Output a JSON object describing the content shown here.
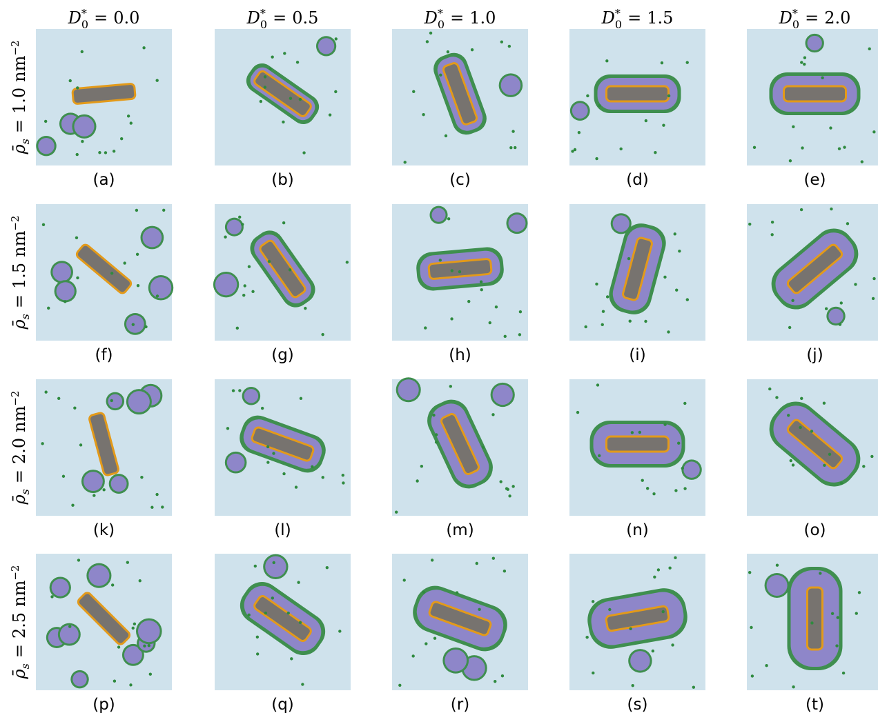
{
  "columns": [
    {
      "symbol": "D",
      "sub": "0",
      "sup": "*",
      "relation": "=",
      "value": "0.0"
    },
    {
      "symbol": "D",
      "sub": "0",
      "sup": "*",
      "relation": "=",
      "value": "0.5"
    },
    {
      "symbol": "D",
      "sub": "0",
      "sup": "*",
      "relation": "=",
      "value": "1.0"
    },
    {
      "symbol": "D",
      "sub": "0",
      "sup": "*",
      "relation": "=",
      "value": "1.5"
    },
    {
      "symbol": "D",
      "sub": "0",
      "sup": "*",
      "relation": "=",
      "value": "2.0"
    }
  ],
  "rows": [
    {
      "symbol": "ρ̄",
      "sub": "s",
      "relation": "=",
      "value": "1.0",
      "unit": "nm",
      "unit_exp": "−2"
    },
    {
      "symbol": "ρ̄",
      "sub": "s",
      "relation": "=",
      "value": "1.5",
      "unit": "nm",
      "unit_exp": "−2"
    },
    {
      "symbol": "ρ̄",
      "sub": "s",
      "relation": "=",
      "value": "2.0",
      "unit": "nm",
      "unit_exp": "−2"
    },
    {
      "symbol": "ρ̄",
      "sub": "s",
      "relation": "=",
      "value": "2.5",
      "unit": "nm",
      "unit_exp": "−2"
    }
  ],
  "panels": [
    "(a)",
    "(b)",
    "(c)",
    "(d)",
    "(e)",
    "(f)",
    "(g)",
    "(h)",
    "(i)",
    "(j)",
    "(k)",
    "(l)",
    "(m)",
    "(n)",
    "(o)",
    "(p)",
    "(q)",
    "(r)",
    "(s)",
    "(t)"
  ]
}
